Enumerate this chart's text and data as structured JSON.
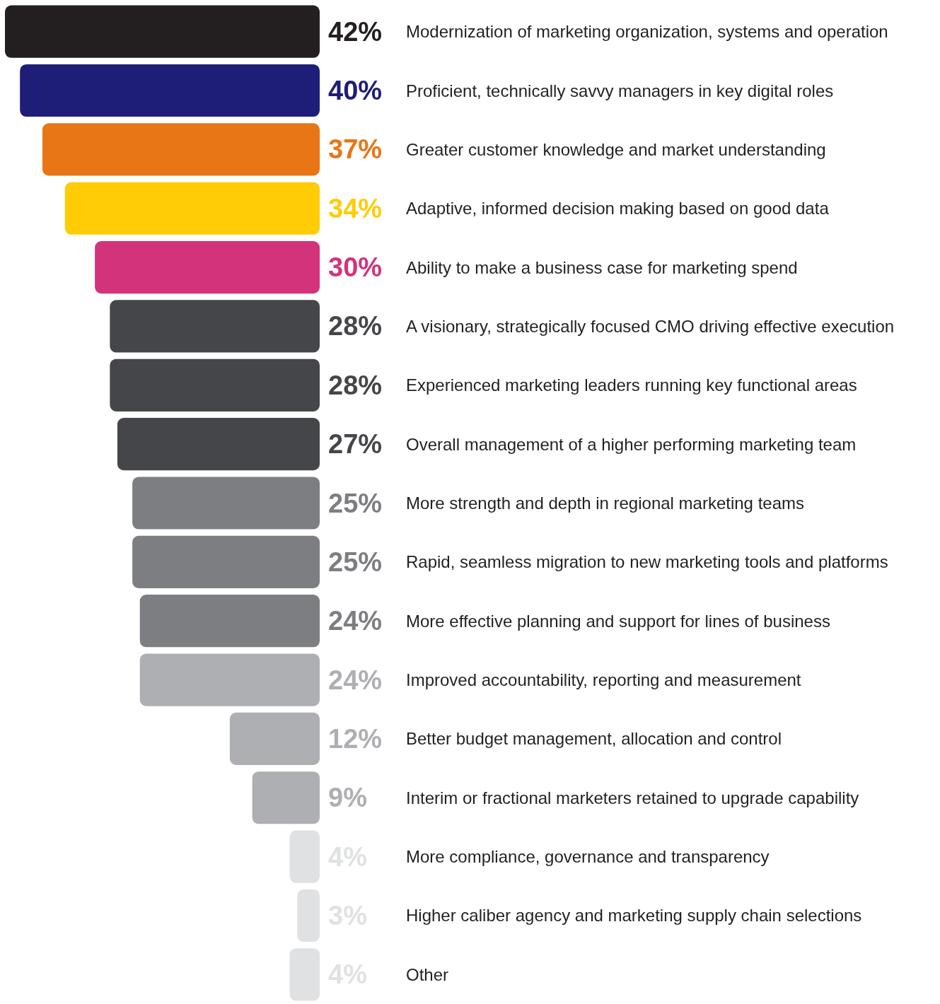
{
  "chart_data": {
    "type": "bar",
    "orientation": "horizontal",
    "categories": [
      "Modernization of marketing organization, systems and operation",
      "Proficient, technically savvy managers in key digital roles",
      "Greater customer knowledge and market understanding",
      "Adaptive, informed decision making based on good data",
      "Ability to make a business case for marketing spend",
      "A visionary, strategically focused CMO driving effective execution",
      "Experienced marketing leaders running key functional areas",
      "Overall management of a higher performing marketing team",
      "More strength and depth in regional marketing teams",
      "Rapid, seamless migration to new marketing tools and platforms",
      "More effective planning and support for lines of business",
      "Improved accountability, reporting and measurement",
      "Better budget management, allocation and control",
      "Interim or fractional marketers retained to upgrade capability",
      "More compliance, governance and transparency",
      "Higher caliber agency and marketing supply chain selections",
      "Other"
    ],
    "values": [
      42,
      40,
      37,
      34,
      30,
      28,
      28,
      27,
      25,
      25,
      24,
      24,
      12,
      9,
      4,
      3,
      4
    ],
    "value_labels": [
      "42%",
      "40%",
      "37%",
      "34%",
      "30%",
      "28%",
      "28%",
      "27%",
      "25%",
      "25%",
      "24%",
      "24%",
      "12%",
      "9%",
      "4%",
      "3%",
      "4%"
    ],
    "colors": [
      "#231f20",
      "#1e1e78",
      "#e97614",
      "#ffcc05",
      "#d3337a",
      "#454649",
      "#454649",
      "#454649",
      "#7d7e82",
      "#7d7e82",
      "#7d7e82",
      "#aeafb2",
      "#aeafb2",
      "#aeafb2",
      "#e0e1e3",
      "#e0e1e3",
      "#e0e1e3"
    ]
  }
}
